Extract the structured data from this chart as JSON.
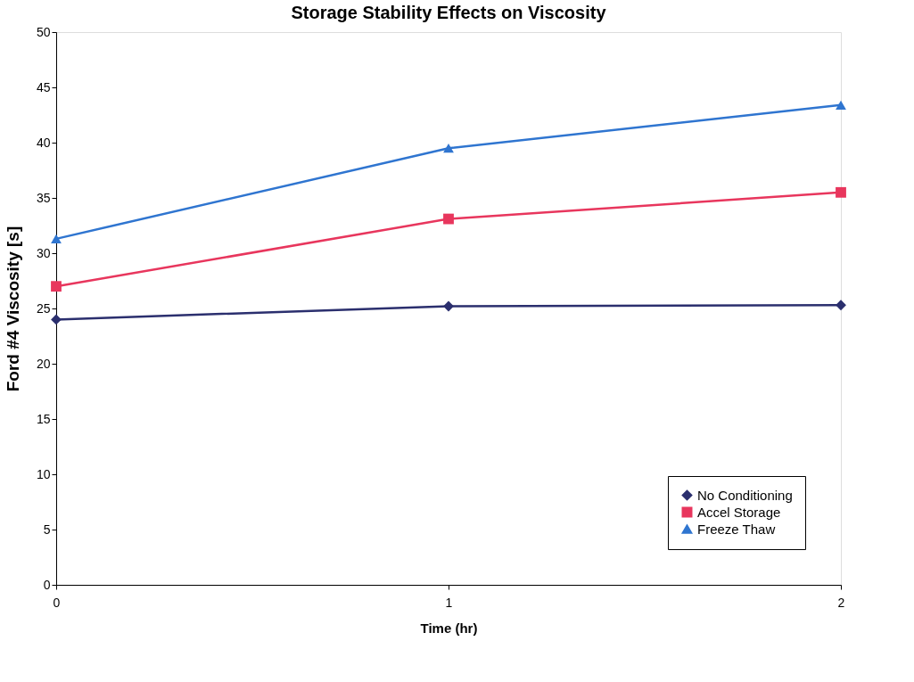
{
  "chart_data": {
    "type": "line",
    "title": "Storage Stability Effects on Viscosity",
    "xlabel": "Time (hr)",
    "ylabel": "Ford #4 Viscosity [s]",
    "x": [
      0,
      1,
      2
    ],
    "xlim": [
      0,
      2
    ],
    "xticks": [
      0,
      1,
      2
    ],
    "ylim": [
      0,
      50
    ],
    "yticks": [
      0,
      5,
      10,
      15,
      20,
      25,
      30,
      35,
      40,
      45,
      50
    ],
    "series": [
      {
        "name": "No Conditioning",
        "color": "#2b2f6e",
        "marker": "diamond",
        "values": [
          24.0,
          25.2,
          25.3
        ]
      },
      {
        "name": "Accel Storage",
        "color": "#e8365d",
        "marker": "square",
        "values": [
          27.0,
          33.1,
          35.5
        ]
      },
      {
        "name": "Freeze Thaw",
        "color": "#2f75d0",
        "marker": "triangle",
        "values": [
          31.3,
          39.5,
          43.4
        ]
      }
    ],
    "grid": false,
    "legend": "bottom right",
    "line_style": "solid"
  }
}
